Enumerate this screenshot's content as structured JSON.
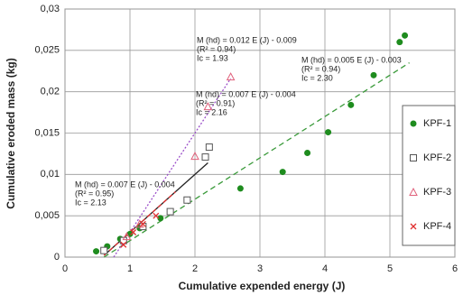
{
  "chart_data": {
    "type": "scatter",
    "x_label": "Cumulative expended energy (J)",
    "y_label": "Cumulative eroded mass (kg)",
    "xlim": [
      0,
      6
    ],
    "xticks": [
      0,
      1,
      2,
      3,
      4,
      5,
      6
    ],
    "ylim": [
      0,
      0.03
    ],
    "yticks": [
      0,
      {
        "value": 0.005,
        "label": "0,005"
      },
      {
        "value": 0.01,
        "label": "0,01"
      },
      {
        "value": 0.015,
        "label": "0,015"
      },
      {
        "value": 0.02,
        "label": "0,02"
      },
      {
        "value": 0.025,
        "label": "0,025"
      },
      {
        "value": 0.03,
        "label": "0,03"
      }
    ],
    "grid": true,
    "legend_position": "right",
    "series": [
      {
        "name": "KPF-1",
        "color": "#1e8c1e",
        "marker": "circle",
        "x": [
          0.48,
          0.65,
          0.85,
          1.0,
          1.15,
          1.47,
          2.7,
          3.35,
          3.73,
          4.05,
          4.4,
          4.75,
          5.15,
          5.23
        ],
        "values": [
          0.0007,
          0.0013,
          0.0022,
          0.0028,
          0.0035,
          0.0047,
          0.0083,
          0.0103,
          0.0126,
          0.0151,
          0.0184,
          0.022,
          0.026,
          0.0268
        ],
        "trend": {
          "color": "#3a9a3a",
          "dash": "6 4",
          "x": [
            0.6,
            5.3
          ],
          "values": [
            0,
            0.0235
          ]
        }
      },
      {
        "name": "KPF-2",
        "color": "#555555",
        "marker": "square",
        "x": [
          0.6,
          0.9,
          1.2,
          1.62,
          1.88,
          2.16,
          2.22
        ],
        "values": [
          0.0008,
          0.002,
          0.0037,
          0.0055,
          0.0069,
          0.0121,
          0.0133
        ],
        "trend": {
          "color": "#222222",
          "dash": "none",
          "x": [
            0.6,
            2.2
          ],
          "values": [
            0.0002,
            0.0114
          ]
        }
      },
      {
        "name": "KPF-3",
        "color": "#e0607a",
        "marker": "triangle",
        "x": [
          0.95,
          1.15,
          2.0,
          2.2,
          2.55
        ],
        "values": [
          0.0025,
          0.004,
          0.0122,
          0.0182,
          0.0218
        ],
        "trend": {
          "color": "#9b4fc9",
          "dash": "2 2",
          "x": [
            0.75,
            2.55
          ],
          "values": [
            0,
            0.0216
          ]
        }
      },
      {
        "name": "KPF-4",
        "color": "#e03030",
        "marker": "x",
        "x": [
          0.9,
          1.05,
          1.2,
          1.4
        ],
        "values": [
          0.0015,
          0.003,
          0.004,
          0.005
        ],
        "trend": {
          "color": "#e03030",
          "dash": "5 3",
          "x": [
            0.6,
            1.7
          ],
          "values": [
            0.0002,
            0.0079
          ]
        }
      }
    ],
    "annotations": [
      {
        "color": "#8a3fc0",
        "lines": [
          "M (hd) = 0.012 E (J) - 0.009",
          "(R² = 0.94)",
          "Ic = 1.93"
        ]
      },
      {
        "color": "#2e8b2e",
        "lines": [
          "M (hd) = 0.005 E (J) - 0.003",
          "(R² = 0.94)",
          "Ic = 2.30"
        ]
      },
      {
        "color": "#222222",
        "lines": [
          "M (hd) = 0.007 E (J) - 0.004",
          "(R² = 0.91)",
          "Ic = 2.16"
        ]
      },
      {
        "color": "#e03030",
        "lines": [
          "M (hd) = 0.007 E (J) - 0.004",
          "(R² = 0.95)",
          "Ic = 2.13"
        ]
      }
    ]
  }
}
